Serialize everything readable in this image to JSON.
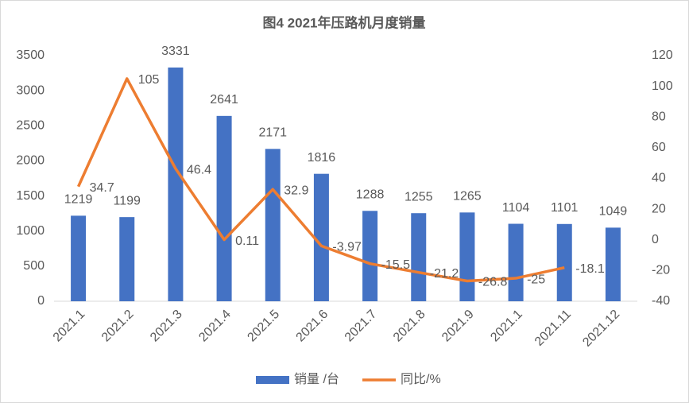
{
  "chart_data": {
    "type": "bar",
    "title": "图4  2021年压路机月度销量",
    "categories": [
      "2021.1",
      "2021.2",
      "2021.3",
      "2021.4",
      "2021.5",
      "2021.6",
      "2021.7",
      "2021.8",
      "2021.9",
      "2021.1",
      "2021.11",
      "2021.12"
    ],
    "series": [
      {
        "name": "销量 /台",
        "color": "#4472c4",
        "type": "bar",
        "values": [
          1219,
          1199,
          3331,
          2641,
          2171,
          1816,
          1288,
          1255,
          1265,
          1104,
          1101,
          1049
        ]
      },
      {
        "name": "同比/%",
        "color": "#ed7d31",
        "type": "line",
        "axis": "y2",
        "values": [
          34.7,
          105,
          46.4,
          0.11,
          32.9,
          -3.97,
          -15.5,
          -21.2,
          -26.8,
          -25,
          -18.1,
          null
        ]
      }
    ],
    "ylim": [
      0,
      3500
    ],
    "yticks": [
      0,
      500,
      1000,
      1500,
      2000,
      2500,
      3000,
      3500
    ],
    "y2lim": [
      -40,
      120
    ],
    "y2ticks": [
      -40,
      -20,
      0,
      20,
      40,
      60,
      80,
      100,
      120
    ],
    "grid": false,
    "legend": "bottom"
  }
}
